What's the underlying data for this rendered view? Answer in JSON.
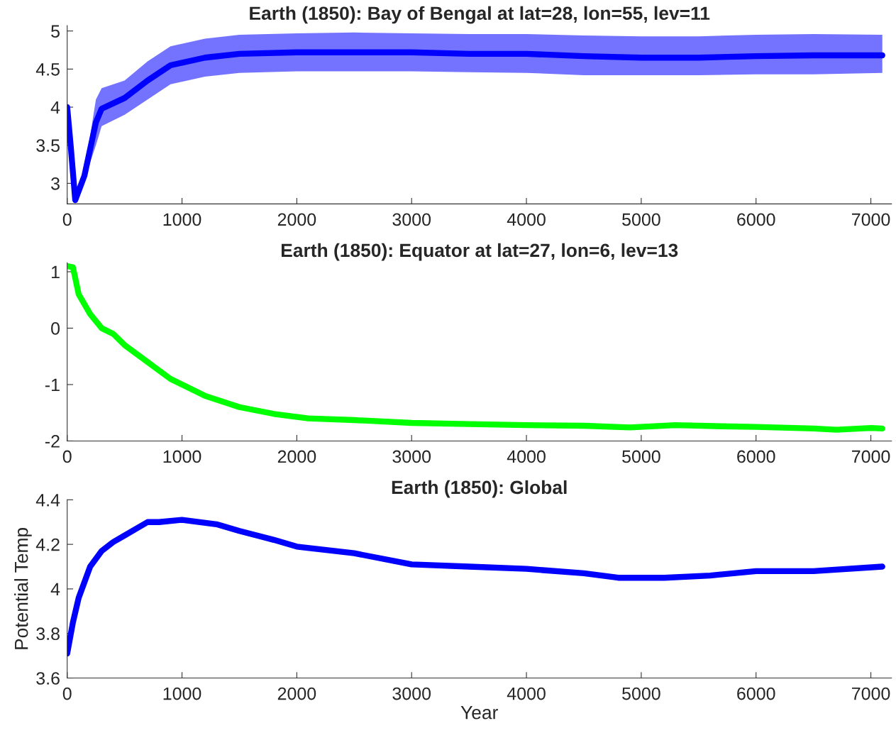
{
  "chart_data": [
    {
      "type": "line",
      "title": "Earth (1850): Bay of Bengal at lat=28, lon=55, lev=11",
      "xlim": [
        0,
        7180
      ],
      "xticks": [
        0,
        1000,
        2000,
        3000,
        4000,
        5000,
        6000,
        7000
      ],
      "ylim": [
        2.73,
        5.07
      ],
      "yticks": [
        3,
        3.5,
        4,
        4.5,
        5
      ],
      "grid": false,
      "marker": "none",
      "line_style": "solid",
      "series": [
        {
          "color": "#0000ff",
          "x": [
            0,
            30,
            70,
            150,
            250,
            300,
            500,
            700,
            900,
            1200,
            1500,
            2000,
            2500,
            3000,
            3500,
            4000,
            4500,
            5000,
            5500,
            6000,
            6500,
            7100
          ],
          "values": [
            4.0,
            3.5,
            2.78,
            3.1,
            3.8,
            3.98,
            4.12,
            4.35,
            4.55,
            4.65,
            4.7,
            4.72,
            4.72,
            4.72,
            4.7,
            4.7,
            4.67,
            4.65,
            4.65,
            4.67,
            4.68,
            4.68
          ],
          "lower": [
            3.98,
            3.45,
            2.75,
            3.05,
            3.5,
            3.75,
            3.9,
            4.1,
            4.3,
            4.4,
            4.45,
            4.47,
            4.47,
            4.47,
            4.46,
            4.45,
            4.42,
            4.42,
            4.42,
            4.43,
            4.43,
            4.45
          ],
          "upper": [
            4.05,
            3.55,
            2.8,
            3.15,
            4.1,
            4.25,
            4.35,
            4.6,
            4.8,
            4.9,
            4.95,
            4.97,
            4.98,
            4.97,
            4.96,
            4.96,
            4.94,
            4.93,
            4.93,
            4.95,
            4.96,
            4.95
          ]
        }
      ]
    },
    {
      "type": "line",
      "title": "Earth (1850): Equator at lat=27, lon=6, lev=13",
      "xlim": [
        0,
        7180
      ],
      "xticks": [
        0,
        1000,
        2000,
        3000,
        4000,
        5000,
        6000,
        7000
      ],
      "ylim": [
        -2,
        1.16
      ],
      "yticks": [
        -2,
        -1,
        0,
        1
      ],
      "grid": false,
      "marker": "none",
      "line_style": "solid",
      "series": [
        {
          "color": "#00ff00",
          "x": [
            0,
            50,
            100,
            200,
            300,
            400,
            500,
            700,
            900,
            1200,
            1500,
            1800,
            2100,
            2500,
            3000,
            3500,
            4000,
            4500,
            4900,
            5300,
            5700,
            6000,
            6500,
            6700,
            7000,
            7100
          ],
          "values": [
            1.1,
            1.08,
            0.6,
            0.25,
            0.0,
            -0.1,
            -0.3,
            -0.6,
            -0.9,
            -1.2,
            -1.4,
            -1.52,
            -1.6,
            -1.63,
            -1.68,
            -1.7,
            -1.72,
            -1.73,
            -1.76,
            -1.72,
            -1.74,
            -1.75,
            -1.78,
            -1.8,
            -1.77,
            -1.78
          ]
        }
      ]
    },
    {
      "type": "line",
      "title": "Earth (1850): Global",
      "xlabel": "Year",
      "ylabel": "Potential Temp",
      "xlim": [
        0,
        7180
      ],
      "xticks": [
        0,
        1000,
        2000,
        3000,
        4000,
        5000,
        6000,
        7000
      ],
      "ylim": [
        3.6,
        4.4
      ],
      "yticks": [
        3.6,
        3.8,
        4,
        4.2,
        4.4
      ],
      "grid": false,
      "marker": "none",
      "line_style": "solid",
      "series": [
        {
          "color": "#0000ff",
          "x": [
            0,
            50,
            100,
            200,
            300,
            400,
            500,
            700,
            800,
            1000,
            1300,
            1500,
            1800,
            2000,
            2500,
            3000,
            3500,
            4000,
            4500,
            4800,
            5200,
            5600,
            6000,
            6500,
            7100
          ],
          "values": [
            3.71,
            3.85,
            3.96,
            4.1,
            4.17,
            4.21,
            4.24,
            4.3,
            4.3,
            4.31,
            4.29,
            4.26,
            4.22,
            4.19,
            4.16,
            4.11,
            4.1,
            4.09,
            4.07,
            4.05,
            4.05,
            4.06,
            4.08,
            4.08,
            4.1
          ]
        }
      ]
    }
  ]
}
